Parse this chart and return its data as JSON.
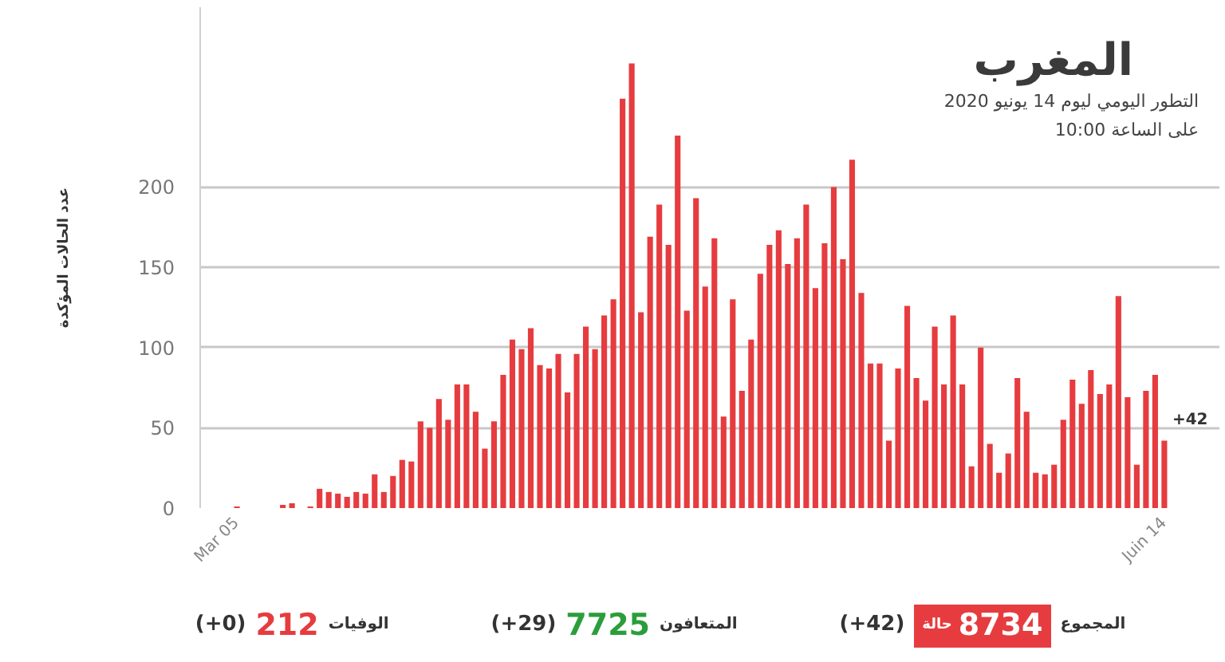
{
  "chart_data": {
    "type": "bar",
    "title": "المغرب",
    "subtitle": "التطور اليومي ليوم 14 يونيو 2020\nعلى الساعة 10:00",
    "ylabel": "عدد الحالات المؤكدة",
    "x": [
      "2020-03-05",
      "2020-03-06",
      "2020-03-07",
      "2020-03-08",
      "2020-03-09",
      "2020-03-10",
      "2020-03-11",
      "2020-03-12",
      "2020-03-13",
      "2020-03-14",
      "2020-03-15",
      "2020-03-16",
      "2020-03-17",
      "2020-03-18",
      "2020-03-19",
      "2020-03-20",
      "2020-03-21",
      "2020-03-22",
      "2020-03-23",
      "2020-03-24",
      "2020-03-25",
      "2020-03-26",
      "2020-03-27",
      "2020-03-28",
      "2020-03-29",
      "2020-03-30",
      "2020-03-31",
      "2020-04-01",
      "2020-04-02",
      "2020-04-03",
      "2020-04-04",
      "2020-04-05",
      "2020-04-06",
      "2020-04-07",
      "2020-04-08",
      "2020-04-09",
      "2020-04-10",
      "2020-04-11",
      "2020-04-12",
      "2020-04-13",
      "2020-04-14",
      "2020-04-15",
      "2020-04-16",
      "2020-04-17",
      "2020-04-18",
      "2020-04-19",
      "2020-04-20",
      "2020-04-21",
      "2020-04-22",
      "2020-04-23",
      "2020-04-24",
      "2020-04-25",
      "2020-04-26",
      "2020-04-27",
      "2020-04-28",
      "2020-04-29",
      "2020-04-30",
      "2020-05-01",
      "2020-05-02",
      "2020-05-03",
      "2020-05-04",
      "2020-05-05",
      "2020-05-06",
      "2020-05-07",
      "2020-05-08",
      "2020-05-09",
      "2020-05-10",
      "2020-05-11",
      "2020-05-12",
      "2020-05-13",
      "2020-05-14",
      "2020-05-15",
      "2020-05-16",
      "2020-05-17",
      "2020-05-18",
      "2020-05-19",
      "2020-05-20",
      "2020-05-21",
      "2020-05-22",
      "2020-05-23",
      "2020-05-24",
      "2020-05-25",
      "2020-05-26",
      "2020-05-27",
      "2020-05-28",
      "2020-05-29",
      "2020-05-30",
      "2020-05-31",
      "2020-06-01",
      "2020-06-02",
      "2020-06-03",
      "2020-06-04",
      "2020-06-05",
      "2020-06-06",
      "2020-06-07",
      "2020-06-08",
      "2020-06-09",
      "2020-06-10",
      "2020-06-11",
      "2020-06-12",
      "2020-06-13",
      "2020-06-14"
    ],
    "values": [
      1,
      0,
      0,
      0,
      0,
      2,
      3,
      0,
      1,
      12,
      10,
      9,
      7,
      10,
      9,
      21,
      10,
      20,
      30,
      29,
      54,
      50,
      68,
      55,
      77,
      77,
      60,
      37,
      54,
      83,
      105,
      99,
      112,
      89,
      87,
      96,
      72,
      96,
      113,
      99,
      120,
      130,
      255,
      277,
      122,
      169,
      189,
      164,
      232,
      123,
      193,
      138,
      168,
      57,
      130,
      73,
      105,
      146,
      164,
      173,
      152,
      168,
      189,
      137,
      165,
      200,
      155,
      217,
      134,
      90,
      90,
      42,
      87,
      126,
      81,
      67,
      113,
      77,
      120,
      77,
      26,
      100,
      40,
      22,
      34,
      81,
      60,
      22,
      21,
      27,
      55,
      80,
      65,
      86,
      71,
      77,
      132,
      69,
      27,
      73,
      83,
      42
    ],
    "color": "#e63c3f",
    "xlim": [
      "2020-03-01",
      "2020-06-20"
    ],
    "xticks": [
      {
        "value": "2020-03-05",
        "label": "Mar 05"
      },
      {
        "value": "2020-06-14",
        "label": "Juin 14"
      }
    ],
    "ylim": [
      0,
      312
    ],
    "yticks": [
      0,
      50,
      100,
      150,
      200
    ],
    "grid": "y",
    "annotations": [
      {
        "text": "+42",
        "x": "2020-06-14",
        "y": 42
      },
      "المجموع 8734 حالة (+42)",
      "المتعافون 7725 (+29)",
      "الوفيات 212 (+0)"
    ]
  }
}
